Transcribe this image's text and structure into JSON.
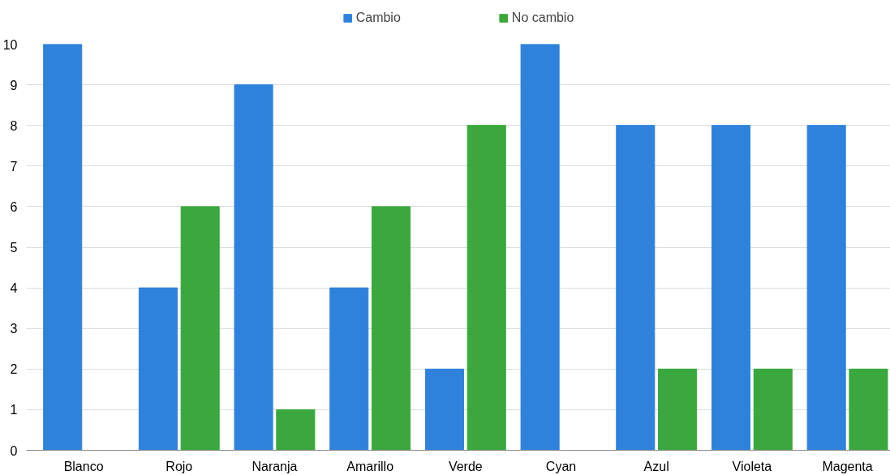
{
  "chart_data": {
    "type": "bar",
    "categories": [
      "Blanco",
      "Rojo",
      "Naranja",
      "Amarillo",
      "Verde",
      "Cyan",
      "Azul",
      "Violeta",
      "Magenta"
    ],
    "series": [
      {
        "name": "Cambio",
        "color": "#2f82dc",
        "values": [
          10,
          4,
          9,
          4,
          2,
          10,
          8,
          8,
          8
        ]
      },
      {
        "name": "No cambio",
        "color": "#3aa83c",
        "values": [
          0,
          6,
          1,
          6,
          8,
          0,
          2,
          2,
          2
        ]
      }
    ],
    "ylim": [
      0,
      10
    ],
    "yticks": [
      0,
      1,
      2,
      3,
      4,
      5,
      6,
      7,
      8,
      9,
      10
    ],
    "grid": "y",
    "legend": "top"
  }
}
